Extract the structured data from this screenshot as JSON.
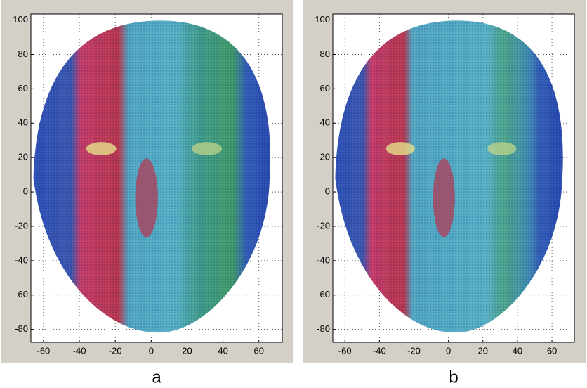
{
  "chart_data": [
    {
      "type": "image",
      "caption": "a",
      "xlim": [
        -67,
        73
      ],
      "ylim": [
        -87.5,
        103.5
      ],
      "xticks": [
        -60,
        -40,
        -20,
        0,
        20,
        40,
        60
      ],
      "yticks": [
        -80,
        -60,
        -40,
        -20,
        0,
        20,
        40,
        60,
        80,
        100
      ],
      "grid": true
    },
    {
      "type": "image",
      "caption": "b",
      "xlim": [
        -67,
        73
      ],
      "ylim": [
        -87.5,
        103.5
      ],
      "xticks": [
        -60,
        -40,
        -20,
        0,
        20,
        40,
        60
      ],
      "yticks": [
        -80,
        -60,
        -40,
        -20,
        0,
        20,
        40,
        60,
        80,
        100
      ],
      "grid": true
    }
  ]
}
